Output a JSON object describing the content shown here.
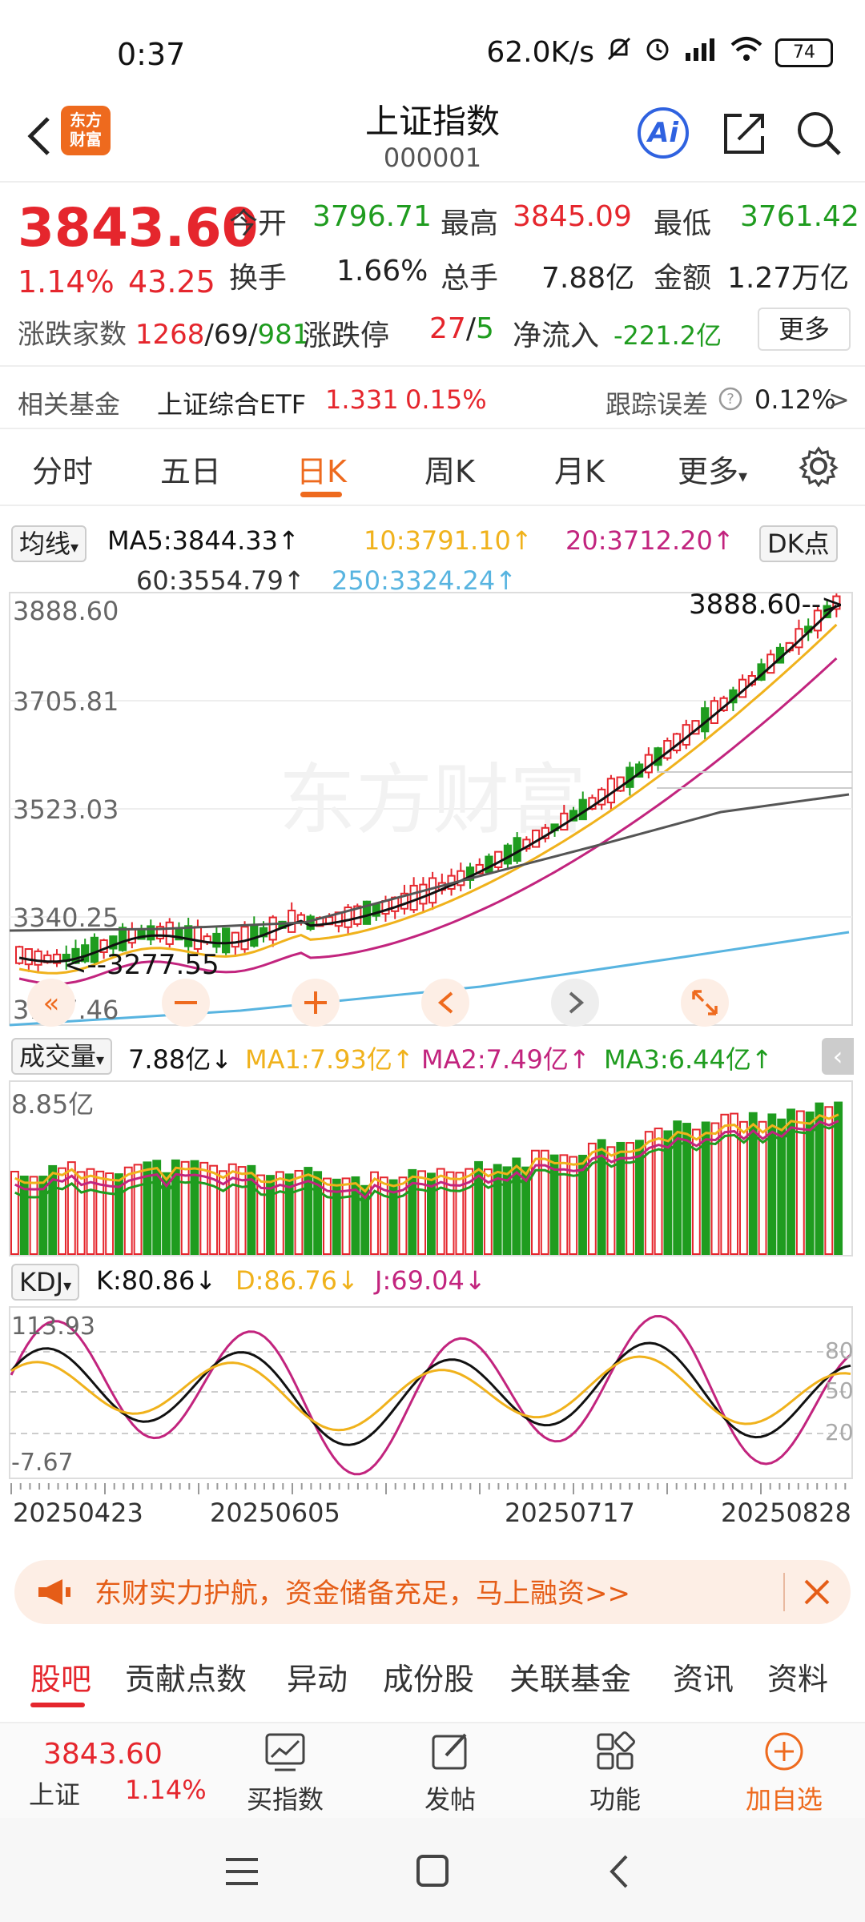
{
  "status": {
    "time": "0:37",
    "net_speed": "62.0K/s",
    "battery": "74"
  },
  "header": {
    "logo_line1": "东方",
    "logo_line2": "财富",
    "title": "上证指数",
    "code": "000001",
    "ai_label": "Ai"
  },
  "quote": {
    "price": "3843.60",
    "change_pct": "1.14%",
    "change_val": "43.25",
    "open_label": "今开",
    "open": "3796.71",
    "high_label": "最高",
    "high": "3845.09",
    "low_label": "最低",
    "low": "3761.42",
    "turnover_label": "换手",
    "turnover": "1.66%",
    "volume_label": "总手",
    "volume": "7.88亿",
    "amount_label": "金额",
    "amount": "1.27万亿",
    "breadth_label": "涨跌家数",
    "breadth_up": "1268",
    "breadth_flat": "69",
    "breadth_down": "981",
    "limit_label": "涨跌停",
    "limit_up": "27",
    "limit_down": "5",
    "inflow_label": "净流入",
    "inflow": "-221.2亿",
    "more_btn": "更多",
    "slash": "/"
  },
  "fund": {
    "label": "相关基金",
    "name": "上证综合ETF",
    "price": "1.331",
    "pct": "0.15%",
    "tracking_label": "跟踪误差",
    "tracking": "0.12%",
    "chevron": ">"
  },
  "tabs": [
    "分时",
    "五日",
    "日K",
    "周K",
    "月K",
    "更多"
  ],
  "ma": {
    "selector": "均线",
    "ma5": "MA5:3844.33↑",
    "ma10": "10:3791.10↑",
    "ma20": "20:3712.20↑",
    "ma60": "60:3554.79↑",
    "ma250": "250:3324.24↑",
    "dk": "DK点"
  },
  "colors": {
    "up": "#e5262d",
    "down": "#1f9c1f",
    "ma5": "#111111",
    "ma10": "#f0b21c",
    "ma20": "#c2247e",
    "ma60": "#555555",
    "ma250": "#58b4e0",
    "accent": "#ee6a1e"
  },
  "kline": {
    "y_labels": [
      "3888.60",
      "3705.81",
      "3523.03",
      "3340.25",
      "3157.46"
    ],
    "max_marker": "3888.60-->",
    "min_marker": "<--3277.55",
    "watermark": "东方财富"
  },
  "volume": {
    "selector": "成交量",
    "value": "7.88亿↓",
    "ma1": "MA1:7.93亿↑",
    "ma2": "MA2:7.49亿↑",
    "ma3": "MA3:6.44亿↑",
    "y_top": "8.85亿"
  },
  "kdj": {
    "selector": "KDJ",
    "k": "K:80.86↓",
    "d": "D:86.76↓",
    "j": "J:69.04↓",
    "y_top": "113.93",
    "y_bottom": "-7.67",
    "ref80": "80",
    "ref50": "50",
    "ref20": "20"
  },
  "dates": [
    "20250423",
    "20250605",
    "20250717",
    "20250828"
  ],
  "banner": {
    "text": "东财实力护航，资金储备充足，马上融资>>"
  },
  "bottom_tabs": [
    "股吧",
    "贡献点数",
    "异动",
    "成份股",
    "关联基金",
    "资讯",
    "资料"
  ],
  "toolbar": {
    "index_price": "3843.60",
    "index_name": "上证",
    "index_pct": "1.14%",
    "buy": "买指数",
    "post": "发帖",
    "func": "功能",
    "add": "加自选"
  }
}
